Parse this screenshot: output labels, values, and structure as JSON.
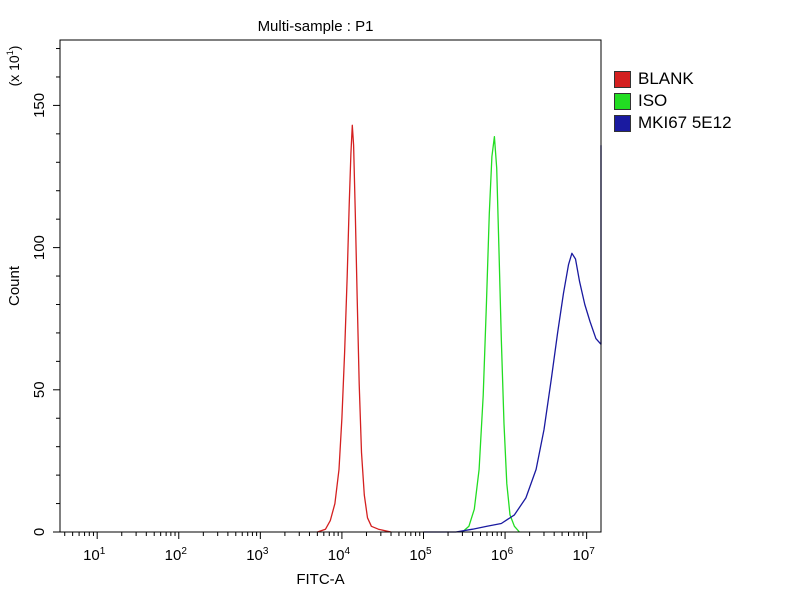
{
  "chart_data": {
    "type": "line",
    "title": "Multi-sample : P1",
    "xlabel": "FITC-A",
    "ylabel": "Count",
    "y_multiplier_label": "(x 10^1)",
    "x_scale": "log",
    "xlim": [
      3.5,
      15000000
    ],
    "ylim": [
      0,
      173
    ],
    "x_ticks": [
      {
        "value": 10,
        "label": "10^1"
      },
      {
        "value": 100,
        "label": "10^2"
      },
      {
        "value": 1000,
        "label": "10^3"
      },
      {
        "value": 10000,
        "label": "10^4"
      },
      {
        "value": 100000,
        "label": "10^5"
      },
      {
        "value": 1000000,
        "label": "10^6"
      },
      {
        "value": 10000000,
        "label": "10^7"
      }
    ],
    "y_ticks": [
      0,
      50,
      100,
      150
    ],
    "grid": false,
    "legend_position": "right",
    "series": [
      {
        "name": "BLANK",
        "color": "#d42020",
        "x": [
          5000,
          6300,
          7200,
          8200,
          9200,
          10000,
          10800,
          11600,
          12300,
          12900,
          13400,
          13900,
          14600,
          15400,
          16300,
          17400,
          18800,
          20600,
          23000,
          28000,
          40000
        ],
        "y": [
          0,
          1,
          4,
          10,
          22,
          40,
          63,
          90,
          115,
          133,
          143,
          136,
          112,
          82,
          52,
          28,
          13,
          5,
          2,
          1,
          0
        ]
      },
      {
        "name": "ISO",
        "color": "#22dd22",
        "x": [
          300000,
          360000,
          420000,
          480000,
          540000,
          590000,
          640000,
          690000,
          740000,
          790000,
          840000,
          900000,
          970000,
          1050000,
          1150000,
          1300000,
          1500000
        ],
        "y": [
          0,
          2,
          8,
          22,
          48,
          80,
          112,
          132,
          139,
          128,
          100,
          68,
          38,
          17,
          6,
          2,
          0
        ]
      },
      {
        "name": "MKI67 5E12",
        "color": "#1a1aa0",
        "x": [
          100000,
          150000,
          250000,
          400000,
          600000,
          900000,
          1300000,
          1800000,
          2400000,
          3000000,
          3700000,
          4400000,
          5200000,
          6000000,
          6600000,
          7300000,
          8200000,
          9500000,
          11000000,
          13000000,
          15000000,
          15000000
        ],
        "y": [
          0,
          0,
          0,
          1,
          2,
          3,
          6,
          12,
          22,
          36,
          54,
          70,
          84,
          94,
          98,
          96,
          88,
          80,
          74,
          68,
          66,
          136
        ]
      }
    ]
  }
}
